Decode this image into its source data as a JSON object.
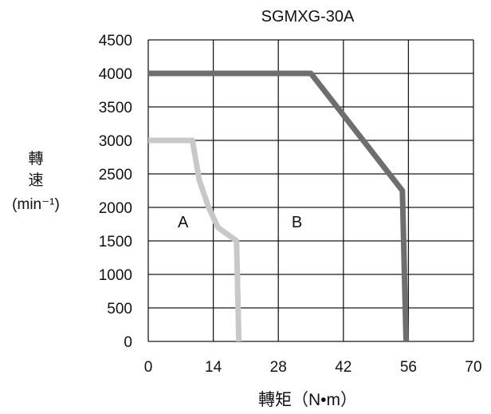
{
  "chart_data": {
    "type": "line",
    "title": "SGMXG-30A",
    "xlabel": "轉矩（N•m）",
    "ylabel_lines": [
      "轉",
      "速",
      "(min⁻¹)"
    ],
    "xlim": [
      0,
      70
    ],
    "ylim": [
      0,
      4500
    ],
    "x_ticks": [
      "0",
      "14",
      "28",
      "42",
      "56",
      "70"
    ],
    "y_ticks": [
      "4500",
      "4000",
      "3500",
      "3000",
      "2500",
      "2000",
      "1500",
      "1000",
      "500",
      "0"
    ],
    "x_tick_values": [
      0,
      14,
      28,
      42,
      56,
      70
    ],
    "y_tick_values": [
      4500,
      4000,
      3500,
      3000,
      2500,
      2000,
      1500,
      1000,
      500,
      0
    ],
    "grid": true,
    "series": [
      {
        "region_label": "A",
        "color": "#c8c8c8",
        "points": [
          [
            0,
            3000
          ],
          [
            9.5,
            3000
          ],
          [
            11,
            2400
          ],
          [
            13,
            2000
          ],
          [
            15,
            1700
          ],
          [
            19,
            1500
          ],
          [
            19.5,
            0
          ]
        ]
      },
      {
        "region_label": "B",
        "color": "#6e6e6e",
        "points": [
          [
            0,
            4000
          ],
          [
            35,
            4000
          ],
          [
            54.7,
            2250
          ],
          [
            55.5,
            0
          ]
        ]
      }
    ],
    "region_labels": [
      {
        "text": "A",
        "x": 7.5,
        "y": 1700
      },
      {
        "text": "B",
        "x": 32,
        "y": 1700
      }
    ]
  }
}
